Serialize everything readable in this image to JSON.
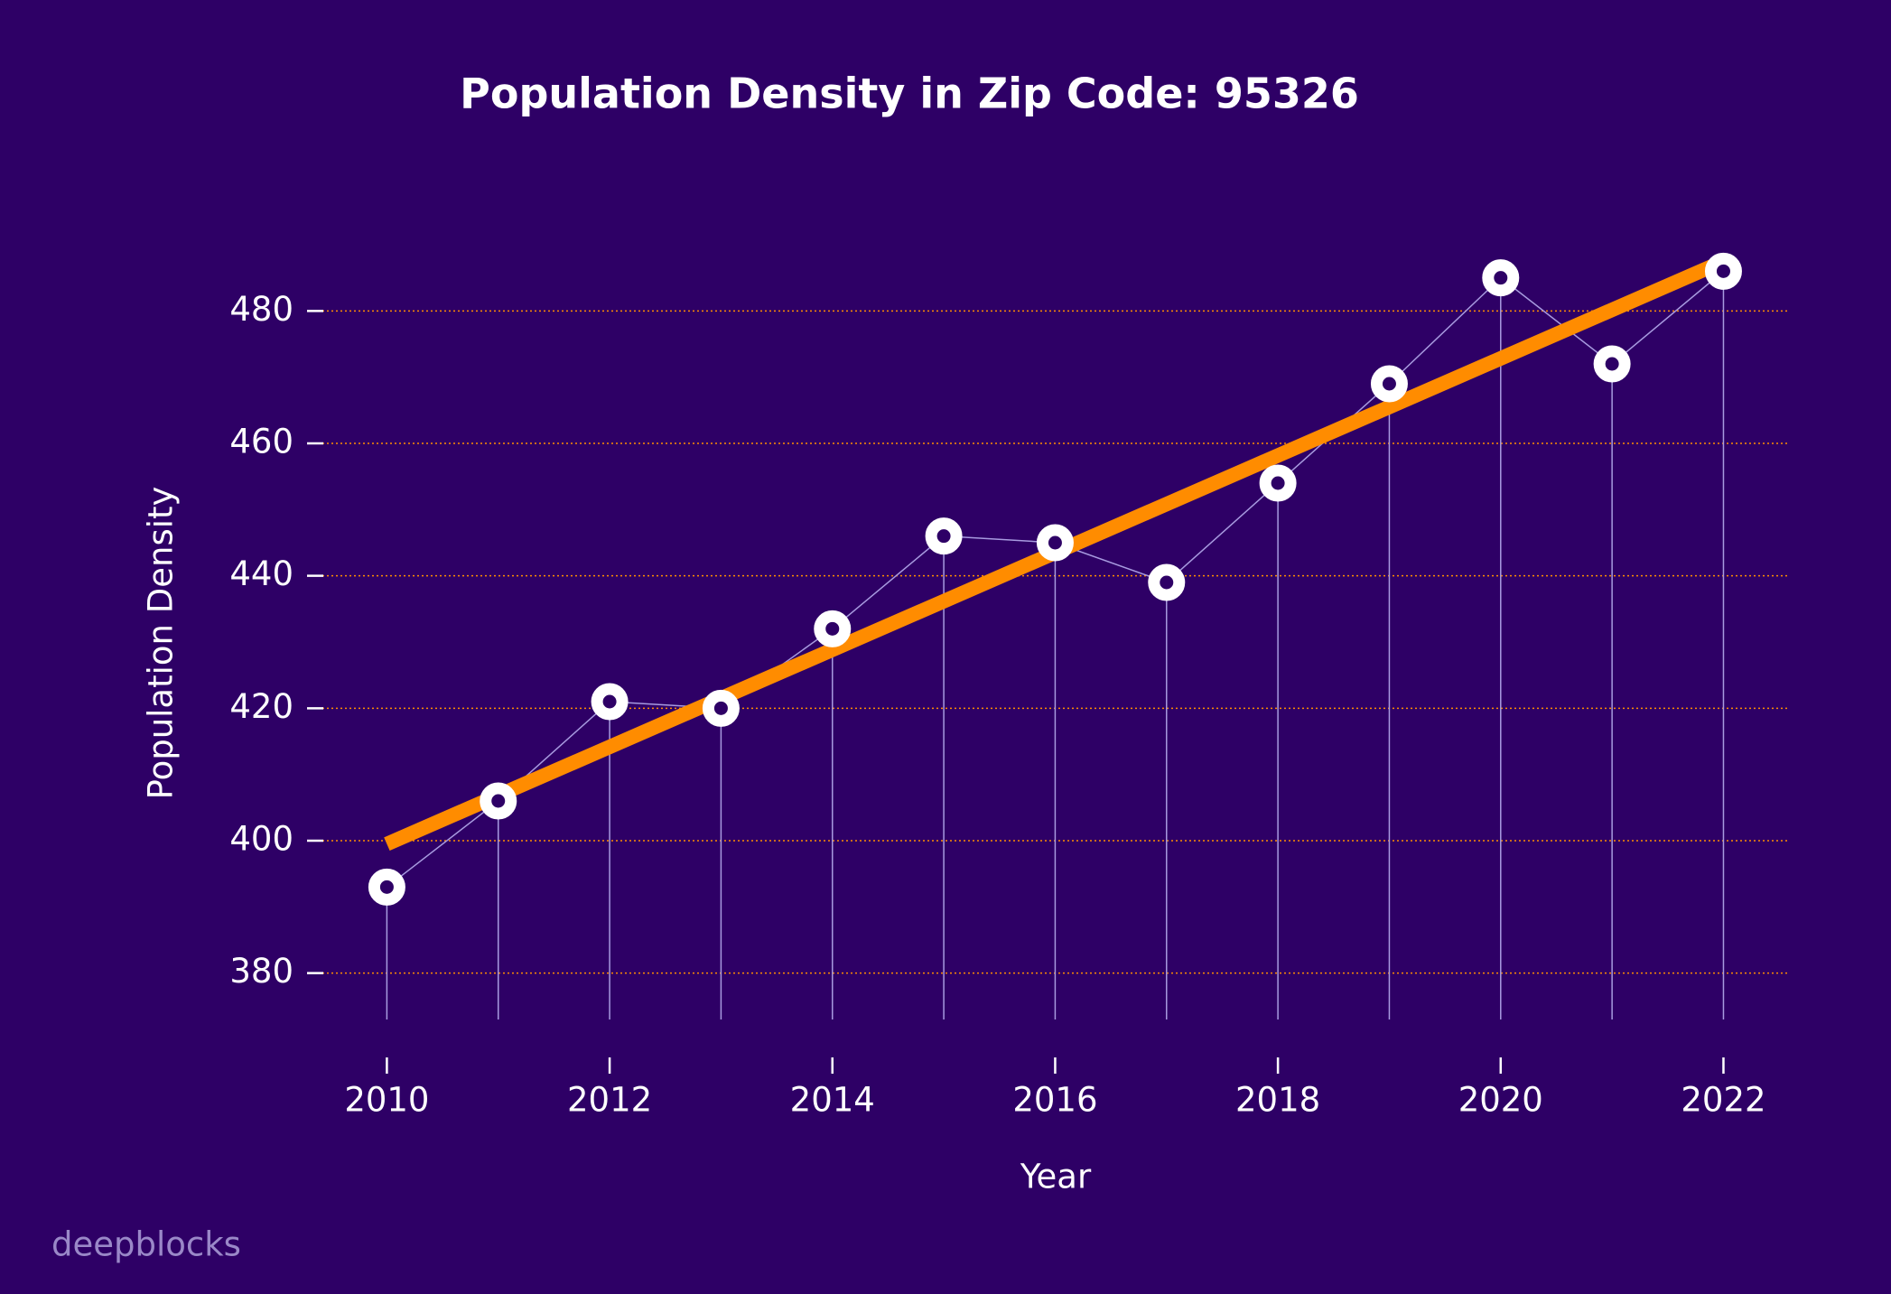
{
  "chart_data": {
    "type": "line",
    "title": "Population Density in Zip Code: 95326",
    "x_label": "Year",
    "y_label": "Population Density",
    "x": [
      2010,
      2011,
      2012,
      2013,
      2014,
      2015,
      2016,
      2017,
      2018,
      2019,
      2020,
      2021,
      2022
    ],
    "series": [
      {
        "color": "#a89be0",
        "values": [
          393,
          406,
          421,
          420,
          432,
          446,
          445,
          439,
          454,
          469,
          485,
          472,
          486
        ]
      }
    ],
    "trend_line": {
      "color": "#ff8c00",
      "x": [
        2010,
        2022
      ],
      "values": [
        399.5,
        487.5
      ]
    },
    "xlim": [
      2009.34,
      2022.58
    ],
    "xticks": [
      2010,
      2012,
      2014,
      2016,
      2018,
      2020,
      2022
    ],
    "ylim": [
      373,
      490
    ],
    "yticks": [
      380,
      400,
      420,
      440,
      460,
      480
    ],
    "grid": true,
    "grid_color": "#ff8c00",
    "background": "#2e0066",
    "watermark": "deepblocks"
  }
}
